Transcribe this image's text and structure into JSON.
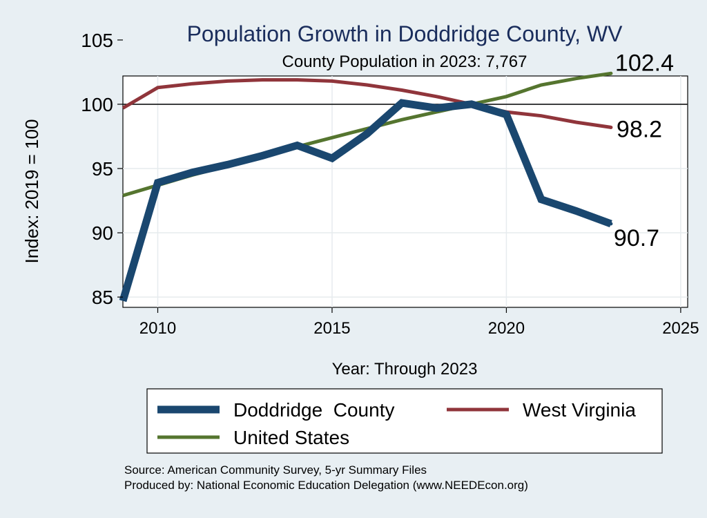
{
  "chart_data": {
    "type": "line",
    "title": "Population Growth in Doddridge County, WV",
    "subtitle": "County Population in 2023: 7,767",
    "xlabel": "Year: Through 2023",
    "ylabel": "Index: 2019 = 100",
    "xlim": [
      2009,
      2025.2
    ],
    "ylim": [
      84.2,
      102.2
    ],
    "xticks": [
      2010,
      2015,
      2020,
      2025
    ],
    "yticks": [
      85,
      90,
      95,
      100,
      105
    ],
    "reference_line": 100,
    "grid": true,
    "x": [
      2009,
      2010,
      2011,
      2012,
      2013,
      2014,
      2015,
      2016,
      2017,
      2018,
      2019,
      2020,
      2021,
      2022,
      2023
    ],
    "series": [
      {
        "name": "Doddridge  County",
        "color": "#1a476f",
        "values": [
          84.7,
          93.9,
          94.7,
          95.3,
          96.0,
          96.8,
          95.8,
          97.7,
          100.1,
          99.7,
          100.0,
          99.2,
          92.6,
          91.7,
          90.7
        ],
        "end_label": "90.7"
      },
      {
        "name": "West Virginia",
        "color": "#90353b",
        "values": [
          99.7,
          101.3,
          101.6,
          101.8,
          101.9,
          101.9,
          101.8,
          101.5,
          101.1,
          100.6,
          100.0,
          99.4,
          99.1,
          98.6,
          98.2
        ],
        "end_label": "98.2"
      },
      {
        "name": "United States",
        "color": "#55752f",
        "values": [
          92.9,
          93.7,
          94.5,
          95.2,
          95.9,
          96.7,
          97.4,
          98.1,
          98.8,
          99.4,
          100.0,
          100.6,
          101.5,
          102.0,
          102.4
        ],
        "end_label": "102.4"
      }
    ],
    "legend": {
      "placement": "bottom",
      "entries": [
        "Doddridge  County",
        "West Virginia",
        "United States"
      ]
    }
  },
  "footer": {
    "source": "Source: American Community Survey, 5-yr Summary Files",
    "produced_by": "Produced by: National Economic Education Delegation (www.NEEDEcon.org)"
  }
}
